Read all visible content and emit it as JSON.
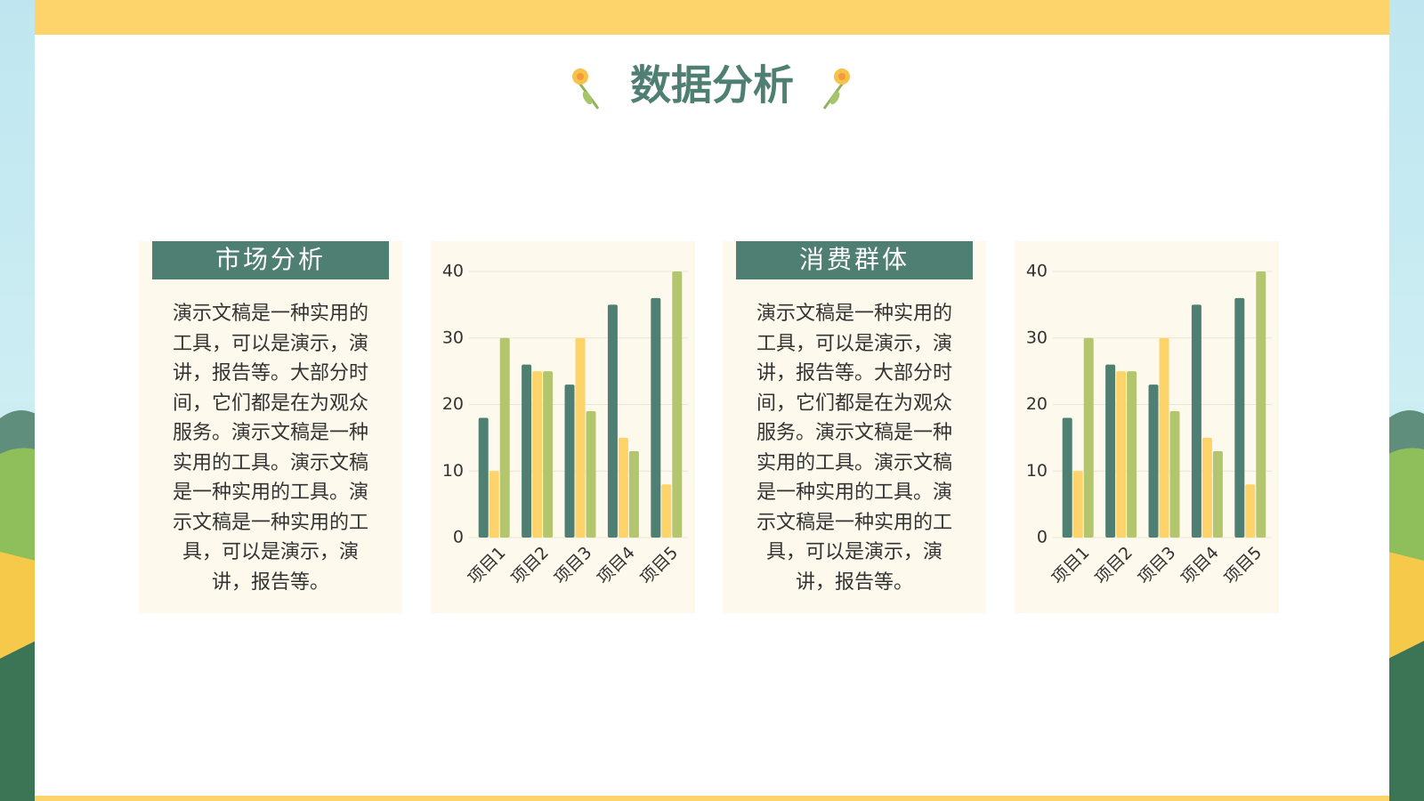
{
  "title": "数据分析",
  "panels": [
    {
      "heading": "市场分析",
      "body": "演示文稿是一种实用的工具，可以是演示，演讲，报告等。大部分时间，它们都是在为观众服务。演示文稿是一种实用的工具。演示文稿是一种实用的工具。演示文稿是一种实用的工具，可以是演示，演讲，报告等。"
    },
    {
      "heading": "消费群体",
      "body": "演示文稿是一种实用的工具，可以是演示，演讲，报告等。大部分时间，它们都是在为观众服务。演示文稿是一种实用的工具。演示文稿是一种实用的工具。演示文稿是一种实用的工具，可以是演示，演讲，报告等。"
    }
  ],
  "chart_data": [
    {
      "type": "bar",
      "categories": [
        "项目1",
        "项目2",
        "项目3",
        "项目4",
        "项目5"
      ],
      "series": [
        {
          "color": "#4e7f72",
          "values": [
            18,
            26,
            23,
            35,
            36
          ]
        },
        {
          "color": "#fcd46a",
          "values": [
            10,
            25,
            30,
            15,
            8
          ]
        },
        {
          "color": "#b3c66e",
          "values": [
            30,
            25,
            19,
            13,
            40
          ]
        }
      ],
      "ylim": [
        0,
        40
      ],
      "yticks": [
        0,
        10,
        20,
        30,
        40
      ],
      "grid": true
    },
    {
      "type": "bar",
      "categories": [
        "项目1",
        "项目2",
        "项目3",
        "项目4",
        "项目5"
      ],
      "series": [
        {
          "color": "#4e7f72",
          "values": [
            18,
            26,
            23,
            35,
            36
          ]
        },
        {
          "color": "#fcd46a",
          "values": [
            10,
            25,
            30,
            15,
            8
          ]
        },
        {
          "color": "#b3c66e",
          "values": [
            30,
            25,
            19,
            13,
            40
          ]
        }
      ],
      "ylim": [
        0,
        40
      ],
      "yticks": [
        0,
        10,
        20,
        30,
        40
      ],
      "grid": true
    }
  ]
}
